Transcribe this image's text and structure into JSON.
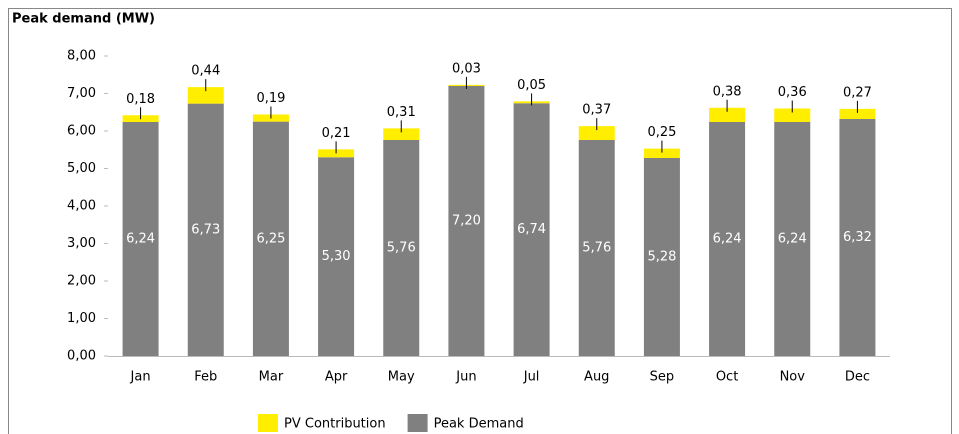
{
  "chart_data": {
    "type": "stacked_bar",
    "title": "Peak demand (MW)",
    "categories": [
      "Jan",
      "Feb",
      "Mar",
      "Apr",
      "May",
      "Jun",
      "Jul",
      "Aug",
      "Sep",
      "Oct",
      "Nov",
      "Dec"
    ],
    "series": [
      {
        "name": "PV Contribution",
        "color": "#ffee00",
        "values": [
          0.18,
          0.44,
          0.19,
          0.21,
          0.31,
          0.03,
          0.05,
          0.37,
          0.25,
          0.38,
          0.36,
          0.27
        ],
        "value_labels": [
          "0,18",
          "0,44",
          "0,19",
          "0,21",
          "0,31",
          "0,03",
          "0,05",
          "0,37",
          "0,25",
          "0,38",
          "0,36",
          "0,27"
        ]
      },
      {
        "name": "Peak Demand",
        "color": "#808080",
        "values": [
          6.24,
          6.73,
          6.25,
          5.3,
          5.76,
          7.2,
          6.74,
          5.76,
          5.28,
          6.24,
          6.24,
          6.32
        ],
        "value_labels": [
          "6,24",
          "6,73",
          "6,25",
          "5,30",
          "5,76",
          "7,20",
          "6,74",
          "5,76",
          "5,28",
          "6,24",
          "6,24",
          "6,32"
        ]
      }
    ],
    "ylim": [
      0,
      8
    ],
    "yticks": [
      {
        "value": 0,
        "label": "0,00"
      },
      {
        "value": 1,
        "label": "1,00"
      },
      {
        "value": 2,
        "label": "2,00"
      },
      {
        "value": 3,
        "label": "3,00"
      },
      {
        "value": 4,
        "label": "4,00"
      },
      {
        "value": 5,
        "label": "5,00"
      },
      {
        "value": 6,
        "label": "6,00"
      },
      {
        "value": 7,
        "label": "7,00"
      },
      {
        "value": 8,
        "label": "8,00"
      }
    ],
    "grid": false,
    "legend": "bottom"
  }
}
